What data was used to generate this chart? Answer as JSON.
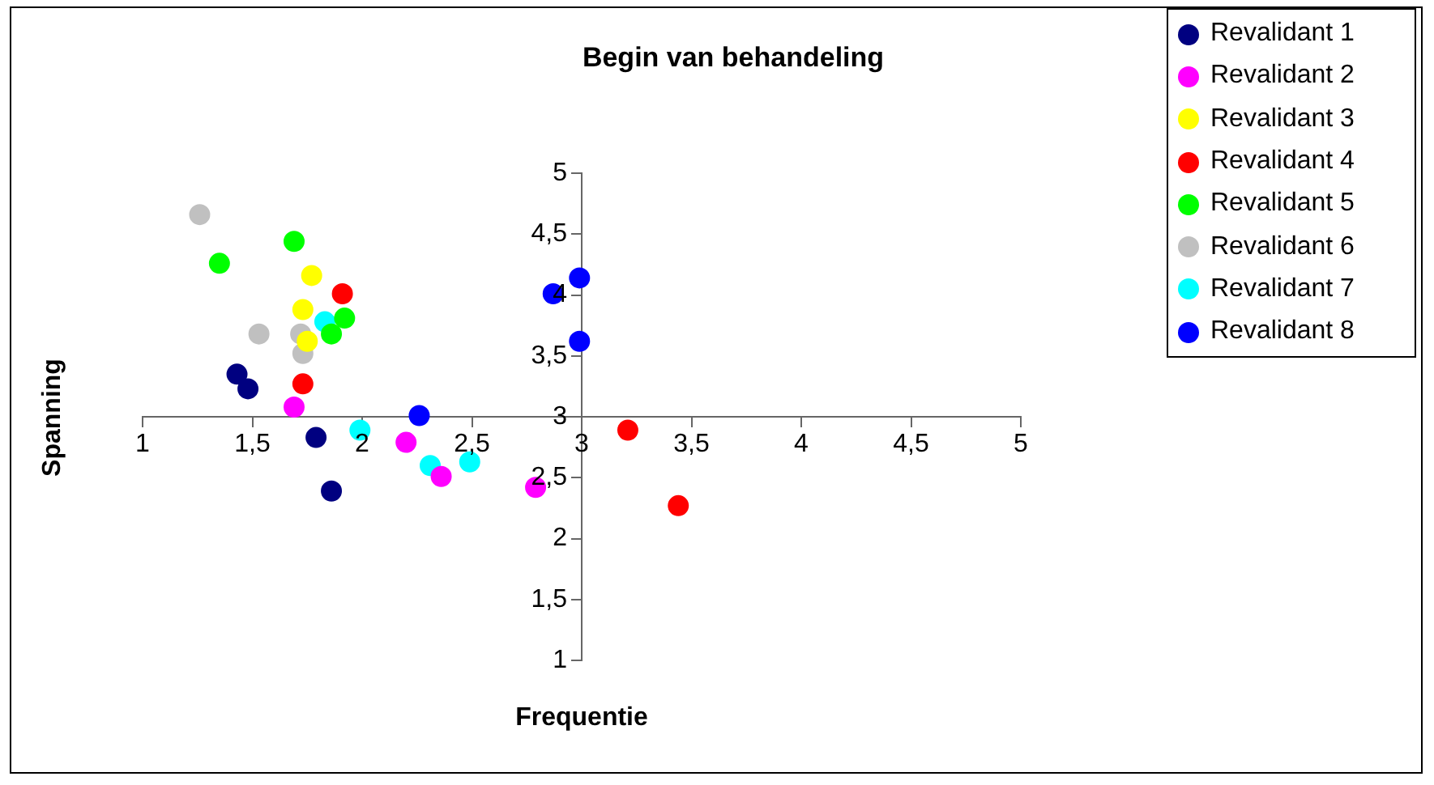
{
  "chart_data": {
    "type": "scatter",
    "title": "Begin van behandeling",
    "xlabel": "Frequentie",
    "ylabel": "Spanning",
    "xlim": [
      1,
      5
    ],
    "xticks": [
      {
        "value": 1,
        "label": "1"
      },
      {
        "value": 1.5,
        "label": "1,5"
      },
      {
        "value": 2,
        "label": "2"
      },
      {
        "value": 2.5,
        "label": "2,5"
      },
      {
        "value": 3,
        "label": "3"
      },
      {
        "value": 3.5,
        "label": "3,5"
      },
      {
        "value": 4,
        "label": "4"
      },
      {
        "value": 4.5,
        "label": "4,5"
      },
      {
        "value": 5,
        "label": "5"
      }
    ],
    "ylim": [
      1,
      5
    ],
    "yticks": [
      {
        "value": 1,
        "label": "1"
      },
      {
        "value": 1.5,
        "label": "1,5"
      },
      {
        "value": 2,
        "label": "2"
      },
      {
        "value": 2.5,
        "label": "2,5"
      },
      {
        "value": 3,
        "label": "3"
      },
      {
        "value": 3.5,
        "label": "3,5"
      },
      {
        "value": 4,
        "label": "4"
      },
      {
        "value": 4.5,
        "label": "4,5"
      },
      {
        "value": 5,
        "label": "5"
      }
    ],
    "grid": false,
    "legend": "top right",
    "marker": "circle",
    "series": [
      {
        "name": "Revalidant 1",
        "color": "#000080",
        "x": [
          1.43,
          1.48,
          1.79,
          1.86
        ],
        "values": [
          3.35,
          3.23,
          2.83,
          2.39
        ]
      },
      {
        "name": "Revalidant 2",
        "color": "#ff00ff",
        "x": [
          1.69,
          2.2,
          2.36,
          2.79
        ],
        "values": [
          3.08,
          2.79,
          2.51,
          2.42
        ]
      },
      {
        "name": "Revalidant 3",
        "color": "#ffff00",
        "x": [
          1.77,
          1.73,
          1.75
        ],
        "values": [
          4.16,
          3.88,
          3.62
        ]
      },
      {
        "name": "Revalidant 4",
        "color": "#ff0000",
        "x": [
          1.91,
          1.73,
          3.21,
          3.44
        ],
        "values": [
          4.01,
          3.27,
          2.89,
          2.27
        ]
      },
      {
        "name": "Revalidant 5",
        "color": "#00ff00",
        "x": [
          1.69,
          1.35,
          1.92,
          1.86
        ],
        "values": [
          4.44,
          4.26,
          3.81,
          3.68
        ]
      },
      {
        "name": "Revalidant 6",
        "color": "#c0c0c0",
        "x": [
          1.26,
          1.53,
          1.72,
          1.73
        ],
        "values": [
          4.66,
          3.68,
          3.68,
          3.52
        ]
      },
      {
        "name": "Revalidant 7",
        "color": "#00ffff",
        "x": [
          1.83,
          1.99,
          2.31,
          2.49
        ],
        "values": [
          3.78,
          2.89,
          2.6,
          2.63
        ]
      },
      {
        "name": "Revalidant 8",
        "color": "#0000ff",
        "x": [
          2.26,
          2.87,
          2.99,
          2.99
        ],
        "values": [
          3.01,
          4.01,
          4.14,
          3.62
        ]
      }
    ]
  }
}
